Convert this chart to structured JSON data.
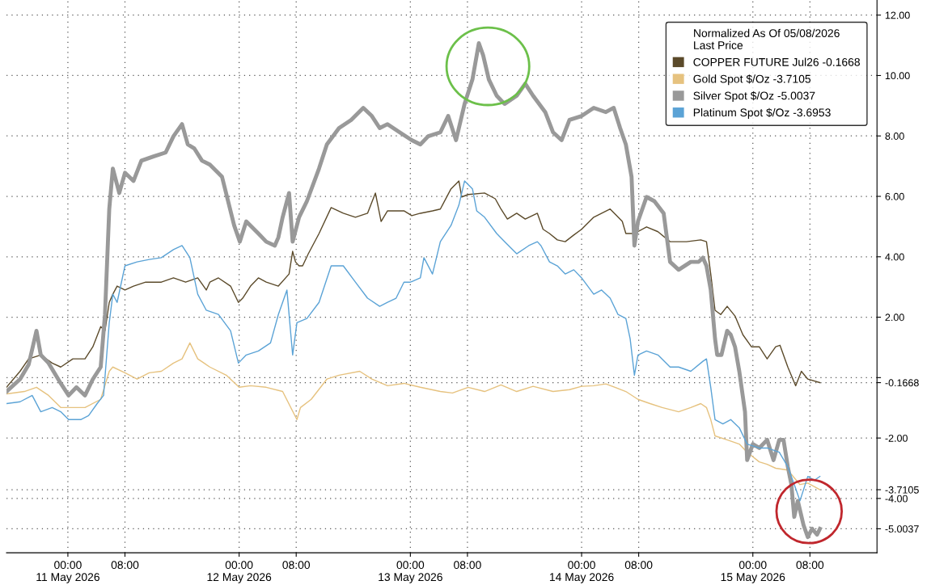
{
  "chart_data": {
    "type": "line",
    "legend_title": "Normalized As Of 05/08/2026\nLast Price",
    "legend": "top right",
    "grid": true,
    "xlim": [
      "2026-05-10T15:24",
      "2026-05-15T17:24"
    ],
    "ylim": [
      -5.8,
      12.5
    ],
    "xticks": [
      {
        "value": "2026-05-11T00:00",
        "label": "00:00\n11 May 2026"
      },
      {
        "value": "2026-05-11T08:00",
        "label": "08:00"
      },
      {
        "value": "2026-05-12T00:00",
        "label": "00:00\n12 May 2026"
      },
      {
        "value": "2026-05-12T08:00",
        "label": "08:00"
      },
      {
        "value": "2026-05-13T00:00",
        "label": "00:00\n13 May 2026"
      },
      {
        "value": "2026-05-13T08:00",
        "label": "08:00"
      },
      {
        "value": "2026-05-14T00:00",
        "label": "00:00\n14 May 2026"
      },
      {
        "value": "2026-05-14T08:00",
        "label": "08:00"
      },
      {
        "value": "2026-05-15T00:00",
        "label": "00:00\n15 May 2026"
      },
      {
        "value": "2026-05-15T08:00",
        "label": "08:00"
      }
    ],
    "yticks": [
      {
        "value": -5.0037,
        "label": "-5.0037"
      },
      {
        "value": -4,
        "label": "-4.00"
      },
      {
        "value": -3.7105,
        "label": "-3.7105"
      },
      {
        "value": -2,
        "label": "-2.00"
      },
      {
        "value": -0.1668,
        "label": "-0.1668"
      },
      {
        "value": 0,
        "label": null
      },
      {
        "value": 2,
        "label": "2.00"
      },
      {
        "value": 4,
        "label": "4.00"
      },
      {
        "value": 6,
        "label": "6.00"
      },
      {
        "value": 8,
        "label": "8.00"
      },
      {
        "value": 10,
        "label": "10.00"
      },
      {
        "value": 12,
        "label": "12.00"
      }
    ],
    "series": [
      {
        "name": "COPPER FUTURE Jul26 -0.1668",
        "color": "#5b4a2a",
        "x": [
          "2026-05-10T15:24",
          "2026-05-10T17:18",
          "2026-05-10T18:30",
          "2026-05-10T20:12",
          "2026-05-10T21:48",
          "2026-05-10T23:00",
          "2026-05-11T00:42",
          "2026-05-11T02:24",
          "2026-05-11T03:30",
          "2026-05-11T04:36",
          "2026-05-11T05:12",
          "2026-05-11T05:48",
          "2026-05-11T06:18",
          "2026-05-11T06:54",
          "2026-05-11T08:00",
          "2026-05-11T09:12",
          "2026-05-11T10:54",
          "2026-05-11T13:06",
          "2026-05-11T14:48",
          "2026-05-11T16:30",
          "2026-05-11T18:12",
          "2026-05-11T19:24",
          "2026-05-11T19:54",
          "2026-05-11T21:06",
          "2026-05-11T22:48",
          "2026-05-11T23:54",
          "2026-05-12T00:30",
          "2026-05-12T01:36",
          "2026-05-12T02:42",
          "2026-05-12T03:48",
          "2026-05-12T05:30",
          "2026-05-12T07:00",
          "2026-05-12T07:30",
          "2026-05-12T07:54",
          "2026-05-12T08:24",
          "2026-05-12T08:54",
          "2026-05-12T09:42",
          "2026-05-12T11:12",
          "2026-05-12T12:54",
          "2026-05-12T14:36",
          "2026-05-12T16:18",
          "2026-05-12T18:00",
          "2026-05-12T19:06",
          "2026-05-12T19:54",
          "2026-05-12T20:48",
          "2026-05-12T23:06",
          "2026-05-13T00:12",
          "2026-05-13T01:24",
          "2026-05-13T03:06",
          "2026-05-13T04:12",
          "2026-05-13T05:42",
          "2026-05-13T06:48",
          "2026-05-13T07:12",
          "2026-05-13T08:06",
          "2026-05-13T10:24",
          "2026-05-13T11:54",
          "2026-05-13T12:42",
          "2026-05-13T13:36",
          "2026-05-13T14:54",
          "2026-05-13T16:06",
          "2026-05-13T17:48",
          "2026-05-13T18:36",
          "2026-05-13T19:30",
          "2026-05-13T20:36",
          "2026-05-13T21:42",
          "2026-05-13T22:54",
          "2026-05-14T00:00",
          "2026-05-14T01:42",
          "2026-05-14T04:00",
          "2026-05-14T05:42",
          "2026-05-14T06:12",
          "2026-05-14T07:24",
          "2026-05-14T09:06",
          "2026-05-14T10:42",
          "2026-05-14T12:24",
          "2026-05-14T14:42",
          "2026-05-14T16:42",
          "2026-05-14T17:30",
          "2026-05-14T18:06",
          "2026-05-14T18:42",
          "2026-05-14T19:30",
          "2026-05-14T20:24",
          "2026-05-14T21:30",
          "2026-05-14T22:36",
          "2026-05-14T23:48",
          "2026-05-15T00:54",
          "2026-05-15T02:00",
          "2026-05-15T03:12",
          "2026-05-15T03:48",
          "2026-05-15T04:54",
          "2026-05-15T06:00",
          "2026-05-15T06:48",
          "2026-05-15T07:42",
          "2026-05-15T09:24"
        ],
        "values": [
          -0.32,
          0.21,
          0.62,
          0.75,
          0.48,
          0.35,
          0.62,
          0.62,
          1.02,
          1.69,
          1.55,
          2.49,
          2.76,
          3.03,
          2.9,
          3.03,
          3.16,
          3.16,
          3.3,
          3.16,
          3.3,
          2.9,
          3.16,
          3.3,
          3.03,
          2.49,
          2.63,
          3.03,
          3.3,
          3.16,
          3.03,
          3.43,
          4.18,
          3.83,
          3.7,
          3.7,
          4.1,
          4.77,
          5.63,
          5.44,
          5.31,
          5.44,
          6.11,
          5.17,
          5.52,
          5.52,
          5.36,
          5.44,
          5.52,
          5.58,
          6.25,
          6.51,
          5.98,
          6.06,
          6.11,
          5.92,
          5.58,
          5.25,
          5.44,
          5.25,
          5.44,
          4.91,
          4.77,
          4.56,
          4.5,
          4.72,
          4.91,
          5.31,
          5.58,
          5.17,
          4.77,
          4.77,
          4.99,
          4.83,
          4.5,
          4.5,
          4.56,
          4.5,
          3.43,
          2.23,
          2.09,
          2.36,
          2.04,
          1.42,
          1.02,
          1.02,
          0.62,
          1.02,
          1.07,
          0.35,
          -0.27,
          0.21,
          -0.05,
          -0.1668
        ]
      },
      {
        "name": "Gold Spot $/Oz -3.7105",
        "color": "#e6c27f",
        "x": [
          "2026-05-10T15:24",
          "2026-05-10T17:54",
          "2026-05-10T19:36",
          "2026-05-10T21:18",
          "2026-05-10T23:00",
          "2026-05-11T00:42",
          "2026-05-11T02:24",
          "2026-05-11T04:36",
          "2026-05-11T05:48",
          "2026-05-11T06:18",
          "2026-05-11T08:00",
          "2026-05-11T09:42",
          "2026-05-11T11:24",
          "2026-05-11T13:06",
          "2026-05-11T14:48",
          "2026-05-11T16:00",
          "2026-05-11T17:06",
          "2026-05-11T18:12",
          "2026-05-11T19:54",
          "2026-05-11T22:12",
          "2026-05-12T00:00",
          "2026-05-12T01:36",
          "2026-05-12T03:48",
          "2026-05-12T06:06",
          "2026-05-12T08:06",
          "2026-05-12T08:36",
          "2026-05-12T10:06",
          "2026-05-12T12:18",
          "2026-05-12T14:00",
          "2026-05-12T16:54",
          "2026-05-12T18:36",
          "2026-05-12T20:48",
          "2026-05-12T23:06",
          "2026-05-13T01:24",
          "2026-05-13T04:12",
          "2026-05-13T05:54",
          "2026-05-13T08:06",
          "2026-05-13T10:24",
          "2026-05-13T12:42",
          "2026-05-13T14:54",
          "2026-05-13T17:12",
          "2026-05-13T20:00",
          "2026-05-13T22:18",
          "2026-05-14T00:00",
          "2026-05-14T01:42",
          "2026-05-14T03:24",
          "2026-05-14T06:12",
          "2026-05-14T07:54",
          "2026-05-14T09:36",
          "2026-05-14T11:18",
          "2026-05-14T13:36",
          "2026-05-14T15:18",
          "2026-05-14T16:42",
          "2026-05-14T17:30",
          "2026-05-14T18:06",
          "2026-05-14T18:42",
          "2026-05-14T20:24",
          "2026-05-14T22:06",
          "2026-05-14T23:12",
          "2026-05-15T00:54",
          "2026-05-15T02:00",
          "2026-05-15T03:12",
          "2026-05-15T04:54",
          "2026-05-15T06:36",
          "2026-05-15T07:42",
          "2026-05-15T09:24"
        ],
        "values": [
          -0.54,
          -0.46,
          -0.32,
          -0.59,
          -0.99,
          -0.99,
          -0.99,
          -0.72,
          0.21,
          0.35,
          0.16,
          -0.05,
          0.16,
          0.21,
          0.48,
          0.62,
          1.15,
          0.62,
          0.35,
          0.08,
          -0.32,
          -0.27,
          -0.32,
          -0.46,
          -1.39,
          -0.99,
          -0.72,
          -0.05,
          0.08,
          0.21,
          -0.05,
          -0.27,
          -0.19,
          -0.32,
          -0.46,
          -0.51,
          -0.32,
          -0.46,
          -0.24,
          -0.46,
          -0.29,
          -0.46,
          -0.4,
          -0.29,
          -0.27,
          -0.21,
          -0.46,
          -0.72,
          -0.86,
          -0.99,
          -1.13,
          -0.99,
          -0.86,
          -0.99,
          -1.39,
          -1.93,
          -2.06,
          -2.2,
          -2.47,
          -2.79,
          -2.87,
          -3.0,
          -3.06,
          -3.54,
          -3.49,
          -3.7105
        ]
      },
      {
        "name": "Silver Spot $/Oz -5.0037",
        "color": "#999999",
        "x": [
          "2026-05-10T15:24",
          "2026-05-10T17:18",
          "2026-05-10T18:30",
          "2026-05-10T19:36",
          "2026-05-10T20:12",
          "2026-05-10T21:18",
          "2026-05-10T23:00",
          "2026-05-11T00:06",
          "2026-05-11T01:12",
          "2026-05-11T02:24",
          "2026-05-11T03:30",
          "2026-05-11T04:36",
          "2026-05-11T05:12",
          "2026-05-11T05:48",
          "2026-05-11T06:18",
          "2026-05-11T07:12",
          "2026-05-11T08:00",
          "2026-05-11T09:12",
          "2026-05-11T10:18",
          "2026-05-11T12:00",
          "2026-05-11T13:42",
          "2026-05-11T14:48",
          "2026-05-11T16:00",
          "2026-05-11T16:48",
          "2026-05-11T17:42",
          "2026-05-11T18:48",
          "2026-05-11T19:54",
          "2026-05-11T21:36",
          "2026-05-11T23:18",
          "2026-05-12T00:06",
          "2026-05-12T01:00",
          "2026-05-12T02:42",
          "2026-05-12T03:48",
          "2026-05-12T05:00",
          "2026-05-12T05:30",
          "2026-05-12T06:06",
          "2026-05-12T07:00",
          "2026-05-12T07:30",
          "2026-05-12T08:24",
          "2026-05-12T09:30",
          "2026-05-12T11:12",
          "2026-05-12T12:18",
          "2026-05-12T14:00",
          "2026-05-12T15:42",
          "2026-05-12T17:24",
          "2026-05-12T18:36",
          "2026-05-12T19:42",
          "2026-05-12T20:48",
          "2026-05-12T22:30",
          "2026-05-13T00:12",
          "2026-05-13T01:24",
          "2026-05-13T02:30",
          "2026-05-13T04:12",
          "2026-05-13T05:18",
          "2026-05-13T06:24",
          "2026-05-13T07:36",
          "2026-05-13T08:42",
          "2026-05-13T09:36",
          "2026-05-13T10:12",
          "2026-05-13T11:00",
          "2026-05-13T12:06",
          "2026-05-13T13:12",
          "2026-05-13T14:54",
          "2026-05-13T16:06",
          "2026-05-13T17:12",
          "2026-05-13T18:54",
          "2026-05-13T20:00",
          "2026-05-13T21:12",
          "2026-05-13T22:18",
          "2026-05-14T00:00",
          "2026-05-14T01:42",
          "2026-05-14T03:24",
          "2026-05-14T04:30",
          "2026-05-14T05:24",
          "2026-05-14T06:12",
          "2026-05-14T07:00",
          "2026-05-14T07:24",
          "2026-05-14T07:54",
          "2026-05-14T09:06",
          "2026-05-14T10:12",
          "2026-05-14T11:30",
          "2026-05-14T12:24",
          "2026-05-14T13:36",
          "2026-05-14T15:18",
          "2026-05-14T16:24",
          "2026-05-14T17:00",
          "2026-05-14T17:30",
          "2026-05-14T18:06",
          "2026-05-14T18:42",
          "2026-05-14T19:00",
          "2026-05-14T19:36",
          "2026-05-14T20:24",
          "2026-05-14T20:54",
          "2026-05-14T21:30",
          "2026-05-14T22:06",
          "2026-05-14T22:54",
          "2026-05-14T23:12",
          "2026-05-15T00:00",
          "2026-05-15T00:54",
          "2026-05-15T02:00",
          "2026-05-15T02:54",
          "2026-05-15T03:42",
          "2026-05-15T04:18",
          "2026-05-15T04:54",
          "2026-05-15T05:24",
          "2026-05-15T05:48",
          "2026-05-15T06:18",
          "2026-05-15T07:06",
          "2026-05-15T07:42",
          "2026-05-15T08:18",
          "2026-05-15T09:00",
          "2026-05-15T09:24"
        ],
        "values": [
          -0.46,
          -0.05,
          0.43,
          1.55,
          0.75,
          0.48,
          -0.19,
          -0.59,
          -0.32,
          -0.59,
          -0.05,
          0.35,
          2.09,
          5.58,
          6.92,
          6.11,
          6.78,
          6.51,
          7.18,
          7.32,
          7.45,
          7.99,
          8.39,
          7.72,
          7.59,
          7.18,
          7.05,
          6.65,
          5.04,
          4.5,
          5.17,
          4.77,
          4.5,
          4.37,
          4.64,
          5.31,
          6.11,
          4.5,
          5.31,
          5.84,
          6.92,
          7.72,
          8.26,
          8.53,
          8.93,
          8.66,
          8.26,
          8.39,
          8.12,
          7.86,
          7.72,
          7.99,
          8.12,
          8.66,
          7.86,
          9.06,
          9.87,
          11.07,
          10.67,
          9.87,
          9.33,
          9.06,
          9.33,
          9.73,
          9.33,
          8.79,
          8.12,
          7.86,
          8.53,
          8.66,
          8.93,
          8.79,
          8.93,
          8.26,
          7.72,
          6.65,
          4.37,
          5.17,
          5.98,
          5.84,
          5.44,
          3.83,
          3.57,
          3.83,
          3.83,
          3.97,
          3.7,
          2.9,
          1.29,
          0.75,
          0.75,
          1.55,
          1.42,
          1.02,
          0.21,
          -1.13,
          -2.73,
          -2.2,
          -2.33,
          -2.06,
          -2.73,
          -2.06,
          -2.06,
          -2.95,
          -3.54,
          -4.61,
          -4.08,
          -4.88,
          -5.28,
          -5.0,
          -5.2,
          -5.0037
        ]
      },
      {
        "name": "Platinum Spot $/Oz -3.6953",
        "color": "#5ba3d6",
        "x": [
          "2026-05-10T15:24",
          "2026-05-10T17:18",
          "2026-05-10T19:00",
          "2026-05-10T20:12",
          "2026-05-10T21:48",
          "2026-05-10T23:00",
          "2026-05-11T00:06",
          "2026-05-11T01:48",
          "2026-05-11T02:54",
          "2026-05-11T04:06",
          "2026-05-11T05:00",
          "2026-05-11T05:48",
          "2026-05-11T06:18",
          "2026-05-11T06:54",
          "2026-05-11T08:00",
          "2026-05-11T09:42",
          "2026-05-11T11:24",
          "2026-05-11T13:06",
          "2026-05-11T14:48",
          "2026-05-11T16:00",
          "2026-05-11T17:06",
          "2026-05-11T18:12",
          "2026-05-11T19:24",
          "2026-05-11T21:06",
          "2026-05-11T22:48",
          "2026-05-11T23:54",
          "2026-05-12T01:00",
          "2026-05-12T02:42",
          "2026-05-12T04:24",
          "2026-05-12T05:30",
          "2026-05-12T06:42",
          "2026-05-12T07:30",
          "2026-05-12T08:06",
          "2026-05-12T09:30",
          "2026-05-12T11:12",
          "2026-05-12T12:54",
          "2026-05-12T14:36",
          "2026-05-12T16:18",
          "2026-05-12T18:00",
          "2026-05-12T19:42",
          "2026-05-12T20:48",
          "2026-05-12T22:00",
          "2026-05-12T23:06",
          "2026-05-13T00:00",
          "2026-05-13T01:24",
          "2026-05-13T01:54",
          "2026-05-13T03:06",
          "2026-05-13T04:12",
          "2026-05-13T05:42",
          "2026-05-13T06:48",
          "2026-05-13T07:36",
          "2026-05-13T08:42",
          "2026-05-13T09:18",
          "2026-05-13T10:24",
          "2026-05-13T12:06",
          "2026-05-13T13:12",
          "2026-05-13T14:54",
          "2026-05-13T16:36",
          "2026-05-13T17:48",
          "2026-05-13T18:18",
          "2026-05-13T19:30",
          "2026-05-13T20:36",
          "2026-05-13T21:42",
          "2026-05-13T22:54",
          "2026-05-14T00:00",
          "2026-05-14T01:42",
          "2026-05-14T02:48",
          "2026-05-14T04:00",
          "2026-05-14T05:06",
          "2026-05-14T06:12",
          "2026-05-14T06:48",
          "2026-05-14T07:24",
          "2026-05-14T07:54",
          "2026-05-14T09:06",
          "2026-05-14T10:42",
          "2026-05-14T12:24",
          "2026-05-14T13:36",
          "2026-05-14T15:18",
          "2026-05-14T17:00",
          "2026-05-14T17:30",
          "2026-05-14T18:06",
          "2026-05-14T18:42",
          "2026-05-14T19:48",
          "2026-05-14T20:54",
          "2026-05-14T22:06",
          "2026-05-14T23:12",
          "2026-05-15T00:54",
          "2026-05-15T02:00",
          "2026-05-15T03:42",
          "2026-05-15T04:54",
          "2026-05-15T06:00",
          "2026-05-15T06:36",
          "2026-05-15T07:42",
          "2026-05-15T08:36",
          "2026-05-15T09:24"
        ],
        "values": [
          -0.86,
          -0.8,
          -0.59,
          -1.13,
          -0.99,
          -1.13,
          -1.39,
          -1.39,
          -1.26,
          -0.86,
          -0.59,
          1.82,
          2.76,
          2.49,
          3.7,
          3.83,
          3.91,
          3.97,
          4.24,
          4.37,
          3.97,
          2.76,
          2.23,
          2.09,
          1.55,
          0.48,
          0.75,
          0.88,
          1.15,
          2.09,
          2.9,
          0.75,
          1.82,
          1.96,
          2.49,
          3.7,
          3.7,
          3.16,
          2.63,
          2.36,
          2.49,
          2.63,
          3.16,
          3.16,
          3.3,
          3.97,
          3.43,
          4.5,
          5.04,
          5.71,
          6.51,
          6.25,
          5.52,
          5.31,
          4.77,
          4.5,
          4.1,
          4.37,
          4.5,
          4.37,
          3.83,
          3.7,
          3.43,
          3.57,
          3.3,
          2.76,
          2.9,
          2.63,
          2.09,
          1.96,
          1.29,
          0.08,
          0.75,
          0.88,
          0.75,
          0.35,
          0.35,
          0.21,
          0.54,
          0.62,
          -0.32,
          -1.39,
          -1.53,
          -1.39,
          -1.66,
          -2.2,
          -2.33,
          -2.33,
          -2.47,
          -2.95,
          -3.67,
          -4.08,
          -3.27,
          -3.4,
          -3.27
        ]
      }
    ]
  }
}
